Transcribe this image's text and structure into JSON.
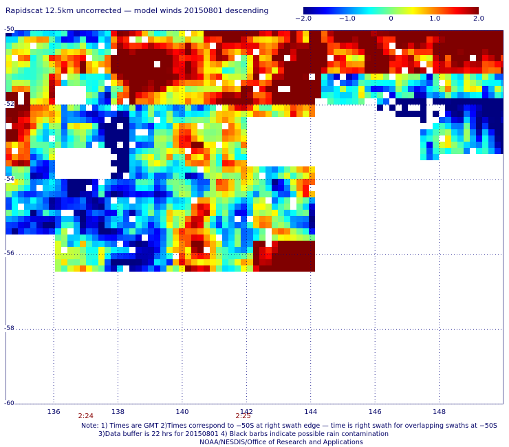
{
  "title": "Rapidscat 12.5km uncorrected — model winds 20150801 descending",
  "colorbar": {
    "colors": [
      "#000080",
      "#0000ff",
      "#0080ff",
      "#00ffff",
      "#80ff80",
      "#ffff00",
      "#ff8000",
      "#ff0000",
      "#800000"
    ],
    "ticks": [
      {
        "value": -2.0,
        "label": "−2.0"
      },
      {
        "value": -1.0,
        "label": "−1.0"
      },
      {
        "value": 0,
        "label": "0"
      },
      {
        "value": 1.0,
        "label": "1.0"
      },
      {
        "value": 2.0,
        "label": "2.0"
      }
    ]
  },
  "map": {
    "lon_range": [
      134.5,
      150.0
    ],
    "lat_range": [
      -50,
      -60
    ],
    "lat_ticks": [
      {
        "value": -50,
        "label": "-50"
      },
      {
        "value": -52,
        "label": "-52"
      },
      {
        "value": -54,
        "label": "-54"
      },
      {
        "value": -56,
        "label": "-56"
      },
      {
        "value": -58,
        "label": "-58"
      },
      {
        "value": -60,
        "label": "-60"
      }
    ],
    "lon_ticks": [
      {
        "value": 136,
        "label": "136"
      },
      {
        "value": 138,
        "label": "138"
      },
      {
        "value": 140,
        "label": "140"
      },
      {
        "value": 142,
        "label": "142"
      },
      {
        "value": 144,
        "label": "144"
      },
      {
        "value": 146,
        "label": "146"
      },
      {
        "value": 148,
        "label": "148"
      }
    ],
    "swath_times": [
      {
        "lon": 137.0,
        "label": "2:24"
      },
      {
        "lon": 141.9,
        "label": "2:25"
      }
    ]
  },
  "notes": {
    "line1": "Note: 1) Times are GMT 2)Times correspond to −50S at right swath edge — time is right swath for overlapping swaths at −50S",
    "line2": "3)Data buffer is 22 hrs for 20150801 4) Black barbs indicate possible rain contamination",
    "line3": "NOAA/NESDIS/Office of Research and Applications"
  }
}
